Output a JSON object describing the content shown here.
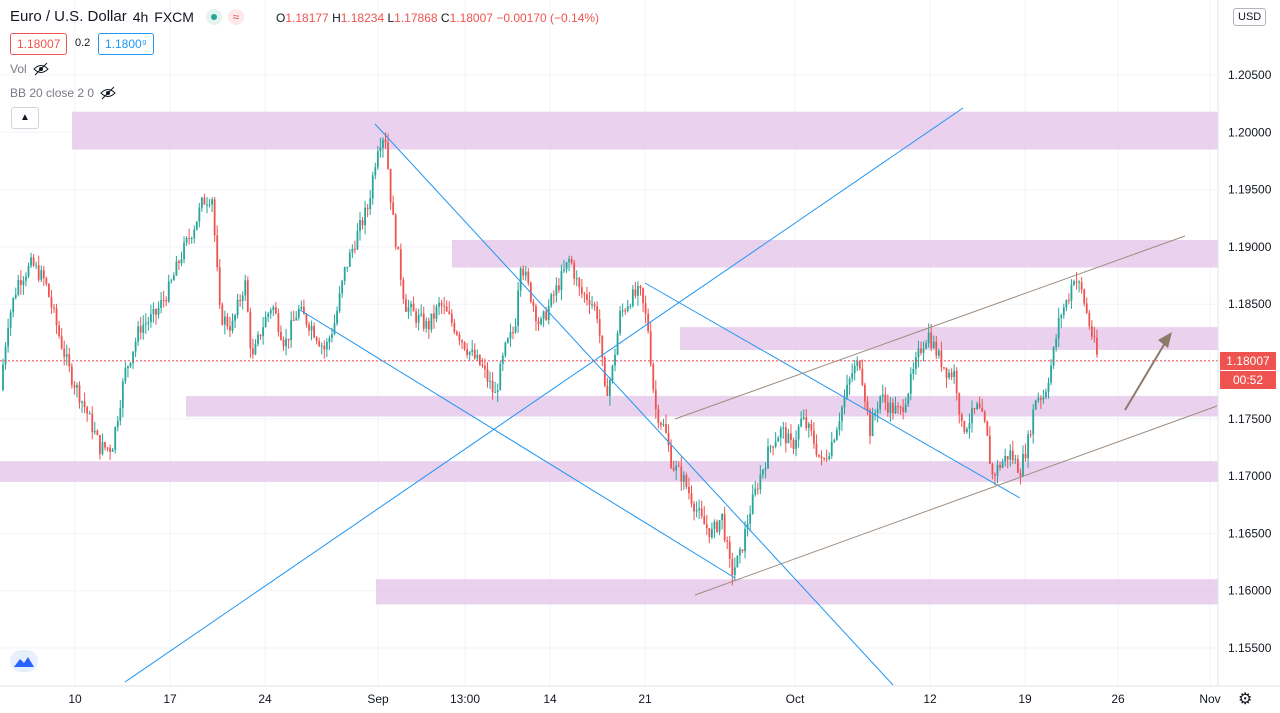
{
  "header": {
    "symbol": "Euro / U.S. Dollar",
    "interval": "4h",
    "exchange": "FXCM",
    "ohlc": {
      "o_label": "O",
      "o": "1.18177",
      "h_label": "H",
      "h": "1.18234",
      "l_label": "L",
      "l": "1.17868",
      "c_label": "C",
      "c": "1.18007",
      "change": "−0.00170 (−0.14%)"
    },
    "bid": "1.18007",
    "spread": "0.2",
    "ask": "1.1800⁹"
  },
  "indicators": {
    "vol": "Vol",
    "bb": "BB 20 close 2 0"
  },
  "currency": "USD",
  "last_price_tag": "1.18007",
  "countdown_tag": "00:52",
  "colors": {
    "up": "#26a69a",
    "down": "#ef5350",
    "zone": "#e1bee7",
    "trendline": "#2196f3",
    "channel": "#9e8e80",
    "arrow": "#8d7b6a"
  },
  "chart_data": {
    "type": "candlestick",
    "title": "Euro / U.S. Dollar · 4h · FXCM",
    "x_ticks": [
      "10",
      "17",
      "24",
      "Sep",
      "13:00",
      "14",
      "21",
      "Oct",
      "12",
      "19",
      "26",
      "Nov"
    ],
    "y_ticks": [
      "1.15500",
      "1.16000",
      "1.16500",
      "1.17000",
      "1.17500",
      "1.18000",
      "1.18500",
      "1.19000",
      "1.19500",
      "1.20000",
      "1.20500"
    ],
    "y_range": [
      1.1535,
      1.2105
    ],
    "last_close": 1.18007,
    "price_path": [
      [
        0,
        1.1775
      ],
      [
        8,
        1.1835
      ],
      [
        18,
        1.187
      ],
      [
        32,
        1.1885
      ],
      [
        45,
        1.187
      ],
      [
        60,
        1.182
      ],
      [
        70,
        1.179
      ],
      [
        85,
        1.176
      ],
      [
        100,
        1.1725
      ],
      [
        112,
        1.1725
      ],
      [
        125,
        1.179
      ],
      [
        140,
        1.183
      ],
      [
        155,
        1.184
      ],
      [
        170,
        1.1865
      ],
      [
        180,
        1.189
      ],
      [
        195,
        1.192
      ],
      [
        203,
        1.194
      ],
      [
        212,
        1.1945
      ],
      [
        220,
        1.184
      ],
      [
        232,
        1.183
      ],
      [
        245,
        1.187
      ],
      [
        252,
        1.18
      ],
      [
        262,
        1.183
      ],
      [
        272,
        1.185
      ],
      [
        285,
        1.1815
      ],
      [
        298,
        1.1845
      ],
      [
        312,
        1.183
      ],
      [
        325,
        1.181
      ],
      [
        335,
        1.1835
      ],
      [
        345,
        1.188
      ],
      [
        357,
        1.191
      ],
      [
        368,
        1.1935
      ],
      [
        378,
        1.199
      ],
      [
        385,
        1.2
      ],
      [
        392,
        1.193
      ],
      [
        400,
        1.188
      ],
      [
        405,
        1.185
      ],
      [
        415,
        1.184
      ],
      [
        428,
        1.183
      ],
      [
        440,
        1.185
      ],
      [
        455,
        1.183
      ],
      [
        468,
        1.181
      ],
      [
        482,
        1.1795
      ],
      [
        495,
        1.177
      ],
      [
        505,
        1.181
      ],
      [
        515,
        1.183
      ],
      [
        520,
        1.189
      ],
      [
        530,
        1.186
      ],
      [
        540,
        1.183
      ],
      [
        550,
        1.185
      ],
      [
        560,
        1.187
      ],
      [
        570,
        1.189
      ],
      [
        580,
        1.186
      ],
      [
        590,
        1.1855
      ],
      [
        598,
        1.184
      ],
      [
        605,
        1.177
      ],
      [
        612,
        1.179
      ],
      [
        620,
        1.184
      ],
      [
        630,
        1.1855
      ],
      [
        640,
        1.186
      ],
      [
        648,
        1.183
      ],
      [
        655,
        1.176
      ],
      [
        665,
        1.174
      ],
      [
        672,
        1.171
      ],
      [
        682,
        1.17
      ],
      [
        692,
        1.168
      ],
      [
        702,
        1.166
      ],
      [
        712,
        1.165
      ],
      [
        722,
        1.1665
      ],
      [
        731,
        1.1615
      ],
      [
        740,
        1.163
      ],
      [
        750,
        1.167
      ],
      [
        760,
        1.17
      ],
      [
        772,
        1.173
      ],
      [
        782,
        1.174
      ],
      [
        792,
        1.1725
      ],
      [
        802,
        1.175
      ],
      [
        812,
        1.1735
      ],
      [
        822,
        1.171
      ],
      [
        832,
        1.173
      ],
      [
        842,
        1.176
      ],
      [
        852,
        1.179
      ],
      [
        860,
        1.18
      ],
      [
        870,
        1.174
      ],
      [
        880,
        1.177
      ],
      [
        890,
        1.176
      ],
      [
        900,
        1.1755
      ],
      [
        910,
        1.178
      ],
      [
        920,
        1.181
      ],
      [
        928,
        1.1825
      ],
      [
        938,
        1.1805
      ],
      [
        948,
        1.179
      ],
      [
        955,
        1.179
      ],
      [
        962,
        1.174
      ],
      [
        970,
        1.175
      ],
      [
        978,
        1.176
      ],
      [
        986,
        1.174
      ],
      [
        992,
        1.17
      ],
      [
        1000,
        1.171
      ],
      [
        1010,
        1.172
      ],
      [
        1020,
        1.1705
      ],
      [
        1028,
        1.173
      ],
      [
        1036,
        1.177
      ],
      [
        1044,
        1.177
      ],
      [
        1052,
        1.18
      ],
      [
        1060,
        1.184
      ],
      [
        1068,
        1.1855
      ],
      [
        1074,
        1.1875
      ],
      [
        1082,
        1.186
      ],
      [
        1090,
        1.183
      ],
      [
        1098,
        1.1801
      ]
    ],
    "support_resistance_zones": [
      [
        1.1985,
        1.2018
      ],
      [
        1.1882,
        1.1906
      ],
      [
        1.181,
        1.183
      ],
      [
        1.1752,
        1.177
      ],
      [
        1.1695,
        1.1713
      ],
      [
        1.1588,
        1.161
      ]
    ],
    "annotations": [
      "blue descending trendline from Sep top",
      "blue ascending trendline",
      "blue descending trendline from late Aug",
      "blue descending trendline into Oct lows",
      "brown rising channel (upper and lower lines)",
      "brown up arrow projection"
    ],
    "grid": true
  }
}
